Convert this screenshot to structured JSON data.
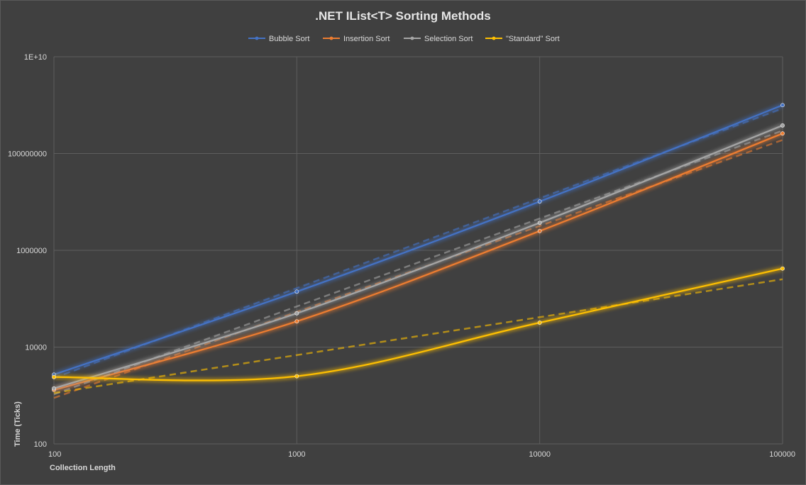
{
  "chart_data": {
    "type": "line",
    "title": ".NET IList<T> Sorting Methods",
    "xlabel": "Collection Length",
    "ylabel": "Time (Ticks)",
    "x_scale": "log",
    "y_scale": "log",
    "x": [
      100,
      1000,
      10000,
      100000
    ],
    "xlim": [
      100,
      100000
    ],
    "ylim": [
      100,
      10000000000
    ],
    "x_tick_labels": [
      "100",
      "1000",
      "10000",
      "100000"
    ],
    "y_ticks": [
      100,
      10000,
      1000000,
      100000000,
      10000000000
    ],
    "y_tick_labels": [
      "100",
      "10000",
      "1000000",
      "100000000",
      "1E+10"
    ],
    "grid": true,
    "legend_position": "top",
    "series": [
      {
        "name": "Bubble Sort",
        "color": "#4472c4",
        "values": [
          2700,
          140000,
          10200000,
          1000000000
        ],
        "trendline": "power"
      },
      {
        "name": "Insertion Sort",
        "color": "#ed7d31",
        "values": [
          1300,
          34000,
          2500000,
          260000000
        ],
        "trendline": "power"
      },
      {
        "name": "Selection Sort",
        "color": "#a5a5a5",
        "values": [
          1400,
          50000,
          3700000,
          380000000
        ],
        "trendline": "power"
      },
      {
        "name": "\"Standard\" Sort",
        "color": "#ffc000",
        "values": [
          2400,
          2500,
          32000,
          420000
        ],
        "trendline": "power"
      }
    ]
  }
}
